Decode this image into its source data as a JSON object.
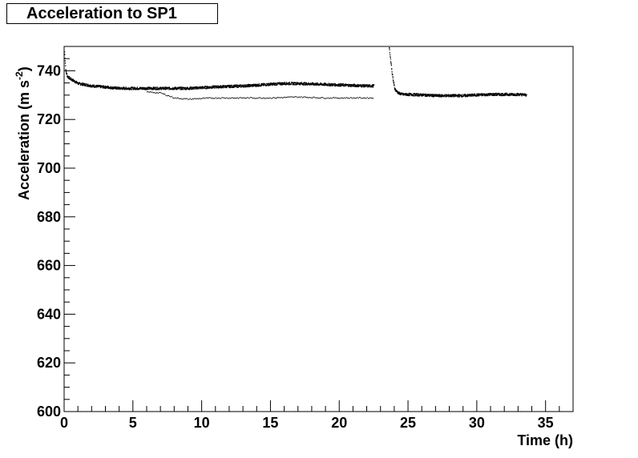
{
  "chart_data": {
    "type": "scatter",
    "title": "Acceleration to SP1",
    "xlabel": "Time (h)",
    "ylabel_main": "Acceleration (m s",
    "ylabel_sup": "-2",
    "ylabel_close": ")",
    "xlim": [
      0,
      37
    ],
    "ylim": [
      600,
      750
    ],
    "x_ticks": [
      0,
      5,
      10,
      15,
      20,
      25,
      30,
      35
    ],
    "y_ticks": [
      600,
      620,
      640,
      660,
      680,
      700,
      720,
      740
    ],
    "grid": false,
    "series": [
      {
        "style": "dense-points",
        "x": [
          0.0,
          0.1,
          0.2,
          0.4,
          0.7,
          1.0,
          1.5,
          2.0,
          3.0,
          4.0,
          5.0,
          6.0,
          7.0,
          8.0,
          9.0,
          10.0,
          11.0,
          12.0,
          13.0,
          14.0,
          15.0,
          16.0,
          17.0,
          18.0,
          19.0,
          20.0,
          21.0,
          22.0,
          22.5
        ],
        "y": [
          748,
          740,
          738,
          737,
          736,
          735,
          734.5,
          734,
          733.5,
          733,
          733,
          733,
          733,
          733,
          733,
          733.3,
          733.6,
          733.8,
          734,
          734.3,
          734.7,
          735,
          735,
          734.8,
          734.6,
          734.4,
          734.2,
          734,
          734
        ]
      },
      {
        "style": "sparse-points",
        "x": [
          6.0,
          7.0,
          8.0,
          9.0,
          10.0,
          11.0,
          12.0,
          13.0,
          14.0,
          15.0,
          16.0,
          17.0,
          18.0,
          19.0,
          20.0,
          21.0,
          22.0,
          22.5
        ],
        "y": [
          731.5,
          731,
          729,
          728.5,
          728.8,
          729,
          729,
          729,
          729,
          729,
          729.2,
          729.4,
          729.2,
          729,
          729,
          729,
          729,
          729
        ]
      },
      {
        "style": "dense-points",
        "x": [
          23.6,
          23.7,
          23.8,
          23.9,
          24.0,
          24.1,
          24.3,
          24.6,
          25.0,
          26.0,
          27.0,
          28.0,
          29.0,
          30.0,
          31.0,
          32.0,
          33.0,
          33.6
        ],
        "y": [
          750,
          745,
          740,
          736,
          733,
          732,
          731,
          730.5,
          730.5,
          730.3,
          730,
          730,
          730,
          730.3,
          730.5,
          730.5,
          730.5,
          730.3
        ]
      }
    ]
  }
}
